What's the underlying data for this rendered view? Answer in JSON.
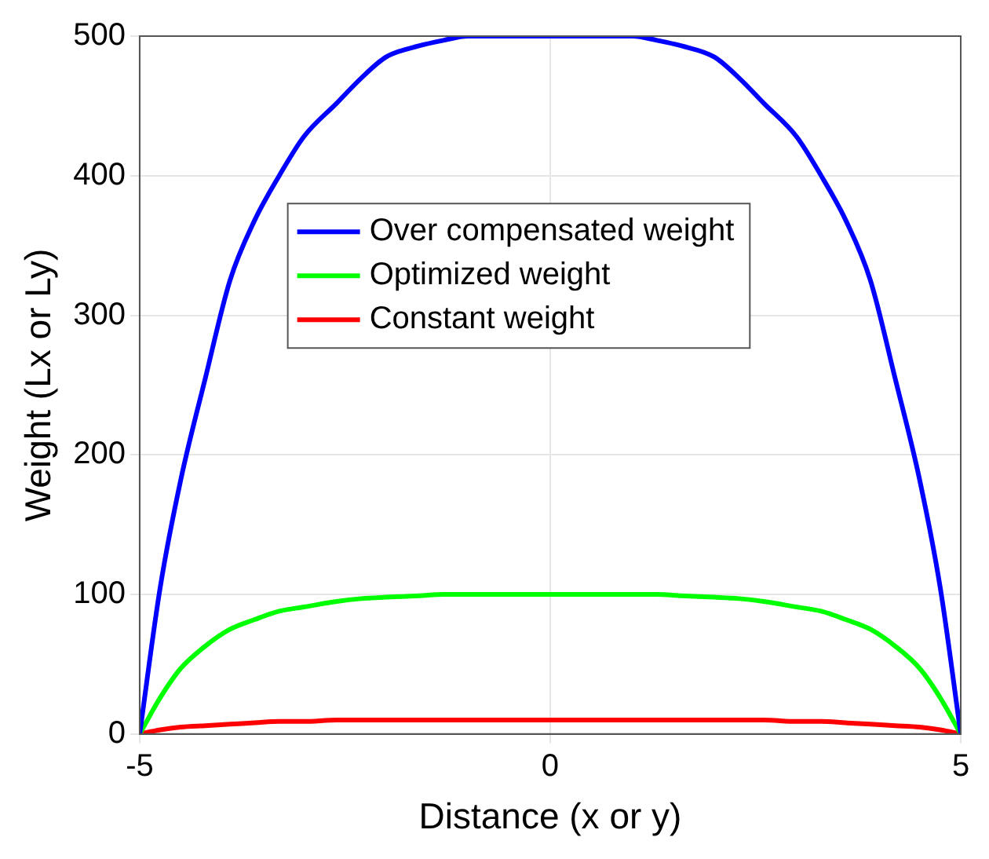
{
  "chart_data": {
    "type": "line",
    "xlabel": "Distance (x or y)",
    "ylabel": "Weight (Lx or Ly)",
    "x": [
      -5,
      -4.75,
      -4.5,
      -4.2,
      -3.9,
      -3.6,
      -3.3,
      -3,
      -2.6,
      -2.3,
      -2,
      -1.6,
      -1.3,
      -1,
      -0.5,
      0,
      0.5,
      1,
      1.3,
      1.6,
      2,
      2.3,
      2.6,
      3,
      3.3,
      3.6,
      3.9,
      4.2,
      4.5,
      4.75,
      5
    ],
    "series": [
      {
        "name": "Over compensated weight",
        "color": "#0000ff",
        "values": [
          0,
          105,
          182,
          255,
          325,
          368,
          400,
          428,
          452,
          470,
          485,
          493,
          497,
          500,
          500,
          500,
          500,
          500,
          497,
          493,
          485,
          470,
          452,
          428,
          400,
          368,
          325,
          255,
          182,
          105,
          0
        ]
      },
      {
        "name": "Optimized weight",
        "color": "#00ff00",
        "values": [
          0,
          26,
          47,
          63,
          75,
          82,
          88,
          91,
          95,
          97,
          98,
          99,
          100,
          100,
          100,
          100,
          100,
          100,
          100,
          99,
          98,
          97,
          95,
          91,
          88,
          82,
          75,
          63,
          47,
          26,
          0
        ]
      },
      {
        "name": "Constant weight",
        "color": "#ff0000",
        "values": [
          0,
          3,
          5,
          6,
          7,
          8,
          9,
          9,
          10,
          10,
          10,
          10,
          10,
          10,
          10,
          10,
          10,
          10,
          10,
          10,
          10,
          10,
          10,
          9,
          9,
          8,
          7,
          6,
          5,
          3,
          0
        ]
      }
    ],
    "xlim": [
      -5,
      5
    ],
    "xticks": [
      -5,
      0,
      5
    ],
    "ylim": [
      0,
      500
    ],
    "yticks": [
      0,
      100,
      200,
      300,
      400,
      500
    ],
    "grid": true,
    "legend": "center",
    "marker": "none",
    "line_style": "solid"
  }
}
